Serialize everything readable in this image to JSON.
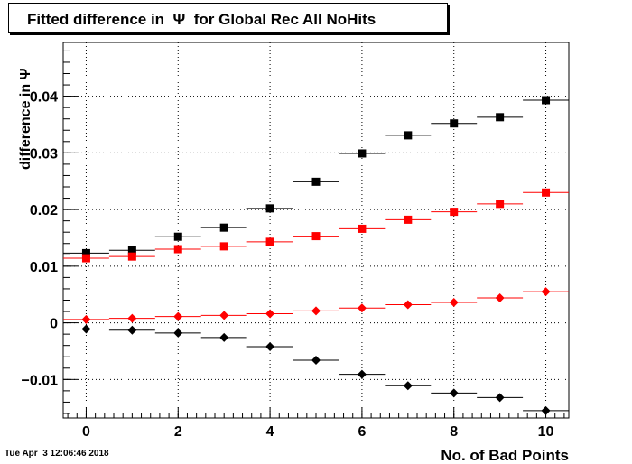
{
  "page": {
    "title": "Fitted difference in  Ψ  for Global Rec All NoHits",
    "timestamp": "Tue Apr  3 12:06:46 2018"
  },
  "chart_data": {
    "type": "scatter",
    "title": "Fitted difference in  Ψ  for Global Rec All NoHits",
    "xlabel": "No. of Bad Points",
    "ylabel": "difference in  Ψ",
    "xlim": [
      -0.5,
      10.5
    ],
    "ylim": [
      -0.0168,
      0.0495
    ],
    "grid": true,
    "xticks": [
      0,
      2,
      4,
      6,
      8,
      10
    ],
    "xtick_labels": [
      "0",
      "2",
      "4",
      "6",
      "8",
      "10"
    ],
    "yticks": [
      -0.01,
      0,
      0.01,
      0.02,
      0.03,
      0.04
    ],
    "ytick_labels": [
      "−0.01",
      "0",
      "0.01",
      "0.02",
      "0.03",
      "0.04"
    ],
    "x": [
      0,
      1,
      2,
      3,
      4,
      5,
      6,
      7,
      8,
      9,
      10
    ],
    "x_error": 0.5,
    "series": [
      {
        "marker": "square",
        "color": "#000000",
        "values": [
          0.0123,
          0.0128,
          0.0152,
          0.0168,
          0.0202,
          0.0249,
          0.0299,
          0.0331,
          0.0352,
          0.0363,
          0.0393
        ]
      },
      {
        "marker": "square",
        "color": "#ff0000",
        "values": [
          0.0114,
          0.0117,
          0.013,
          0.0135,
          0.0143,
          0.0153,
          0.0166,
          0.0182,
          0.0196,
          0.021,
          0.023
        ]
      },
      {
        "marker": "diamond",
        "color": "#ff0000",
        "values": [
          0.0006,
          0.0008,
          0.0011,
          0.0013,
          0.0016,
          0.0021,
          0.0026,
          0.0032,
          0.0036,
          0.0044,
          0.0055
        ]
      },
      {
        "marker": "diamond",
        "color": "#000000",
        "values": [
          -0.0011,
          -0.0013,
          -0.0018,
          -0.0026,
          -0.0042,
          -0.0066,
          -0.0091,
          -0.0111,
          -0.0124,
          -0.0132,
          -0.0155
        ]
      }
    ]
  }
}
